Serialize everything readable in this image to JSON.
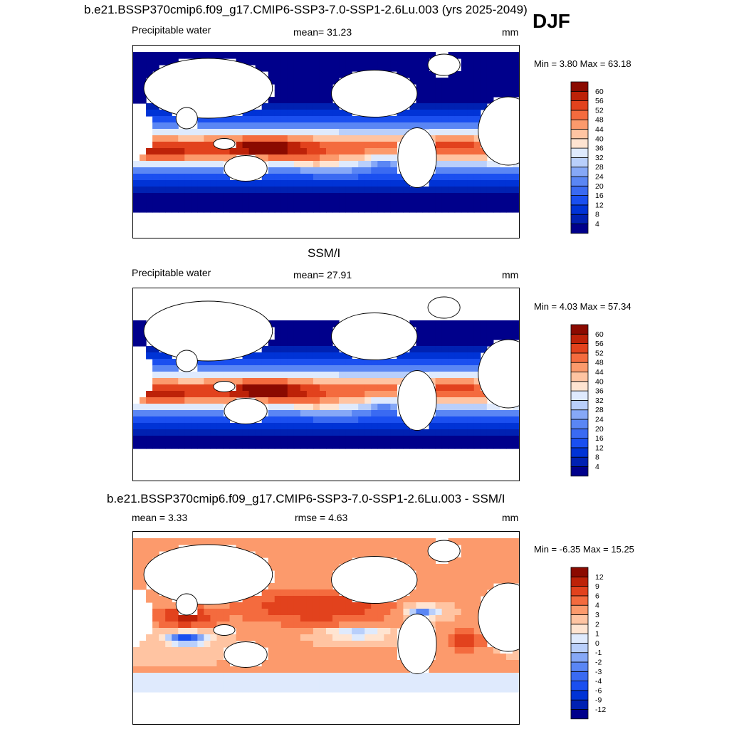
{
  "header": {
    "title": "b.e21.BSSP370cmip6.f09_g17.CMIP6-SSP3-7.0-SSP1-2.6Lu.003 (yrs 2025-2049)",
    "season": "DJF"
  },
  "chart_data": [
    {
      "type": "heatmap",
      "panel": "model",
      "variable": "Precipitable water",
      "stat_text": "mean=  31.23",
      "units": "mm",
      "minmax_text": "Min =   3.80 Max =  63.18",
      "min": 3.8,
      "max": 63.18,
      "colorbar_levels": [
        "4",
        "8",
        "12",
        "16",
        "20",
        "24",
        "28",
        "32",
        "36",
        "40",
        "44",
        "48",
        "52",
        "56",
        "60"
      ],
      "colors": [
        "#00008b",
        "#0021b2",
        "#0033d6",
        "#1a4ff0",
        "#3a6af2",
        "#5a86f4",
        "#86a8f7",
        "#b9cffb",
        "#dfeafd",
        "#ffe4d1",
        "#ffc4a2",
        "#fc9a6c",
        "#f46b3e",
        "#e2421d",
        "#bd2208",
        "#8b0a00"
      ]
    },
    {
      "type": "heatmap",
      "panel": "obs",
      "panel_title": "SSM/I",
      "variable": "Precipitable water",
      "stat_text": "mean=  27.91",
      "units": "mm",
      "minmax_text": "Min =   4.03 Max =  57.34",
      "min": 4.03,
      "max": 57.34,
      "colorbar_levels": [
        "4",
        "8",
        "12",
        "16",
        "20",
        "24",
        "28",
        "32",
        "36",
        "40",
        "44",
        "48",
        "52",
        "56",
        "60"
      ],
      "colors": [
        "#00008b",
        "#0021b2",
        "#0033d6",
        "#1a4ff0",
        "#3a6af2",
        "#5a86f4",
        "#86a8f7",
        "#b9cffb",
        "#dfeafd",
        "#ffe4d1",
        "#ffc4a2",
        "#fc9a6c",
        "#f46b3e",
        "#e2421d",
        "#bd2208",
        "#8b0a00"
      ]
    },
    {
      "type": "heatmap",
      "panel": "difference",
      "panel_title": "b.e21.BSSP370cmip6.f09_g17.CMIP6-SSP3-7.0-SSP1-2.6Lu.003 - SSM/I",
      "stat_text": "mean =   3.33",
      "rmse_text": "rmse =   4.63",
      "units": "mm",
      "minmax_text": "Min =  -6.35 Max =  15.25",
      "min": -6.35,
      "max": 15.25,
      "mean": 3.33,
      "rmse": 4.63,
      "colorbar_levels": [
        "-12",
        "-9",
        "-6",
        "-4",
        "-3",
        "-2",
        "-1",
        "0",
        "1",
        "2",
        "3",
        "4",
        "6",
        "9",
        "12"
      ],
      "colors": [
        "#00008b",
        "#0021b2",
        "#0033d6",
        "#1a4ff0",
        "#3a6af2",
        "#5a86f4",
        "#86a8f7",
        "#b9cffb",
        "#dfeafd",
        "#ffe4d1",
        "#ffc4a2",
        "#fc9a6c",
        "#f46b3e",
        "#e2421d",
        "#bd2208",
        "#8b0a00"
      ]
    }
  ]
}
